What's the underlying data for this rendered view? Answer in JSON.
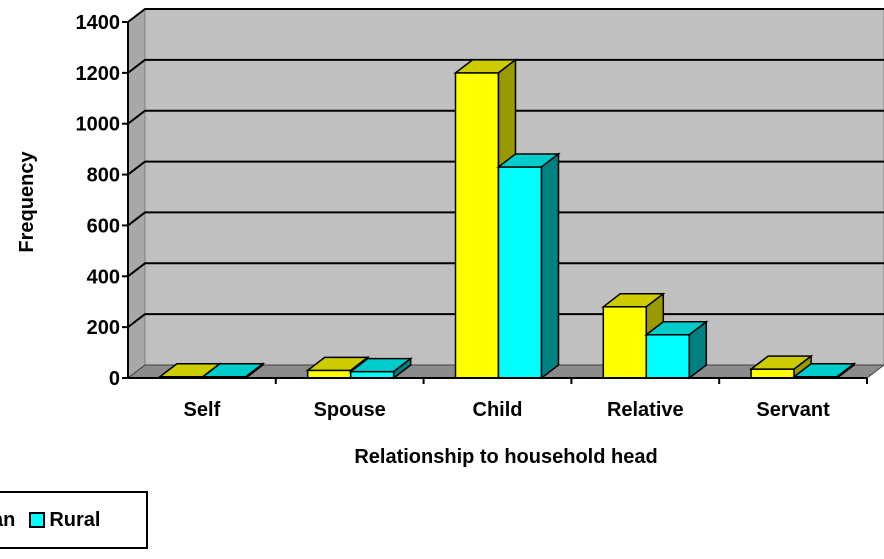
{
  "chart_data": {
    "type": "bar",
    "title": "",
    "xlabel": "Relationship to household head",
    "ylabel": "Frequency",
    "categories": [
      "Self",
      "Spouse",
      "Child",
      "Relative",
      "Servant"
    ],
    "series": [
      {
        "name": "Urban",
        "values": [
          5,
          30,
          1200,
          280,
          35
        ],
        "color": "#FFFF00",
        "top_color": "#CCCC00",
        "side_color": "#999900"
      },
      {
        "name": "Rural",
        "values": [
          5,
          25,
          830,
          170,
          5
        ],
        "color": "#00FFFF",
        "top_color": "#00CCCC",
        "side_color": "#008080"
      }
    ],
    "ylim": [
      0,
      1400
    ],
    "yticks": [
      0,
      200,
      400,
      600,
      800,
      1000,
      1200,
      1400
    ],
    "grid": true,
    "style": "3d-clustered-column",
    "plot_background": "#C0C0C0",
    "legend_position": "bottom-left"
  },
  "legend": {
    "urban_label": "Urban",
    "rural_label": "Rural",
    "urban_display": "an"
  }
}
